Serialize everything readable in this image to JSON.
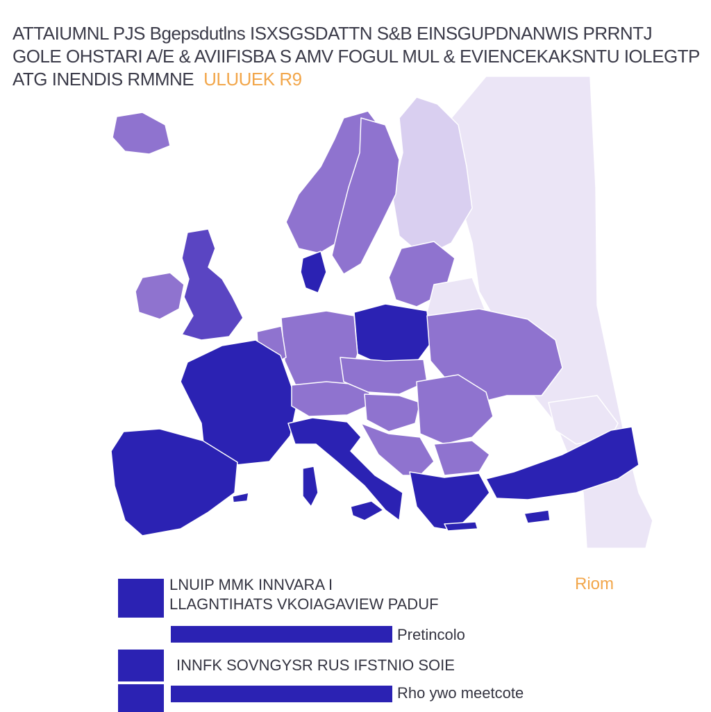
{
  "title": {
    "line1": "ATTAIUMNL PJS Bgepsdutlns ISXSGSDATTN S&B EINSGUPDNANWIS PRRNTJ",
    "line2": "GOLE OHSTARI A/E & AVIIFISBA S AMV FOGUL MUL & EVIENCEKAKSNTU IOLEGTPFOUIRI",
    "line3": "ATG INENDIS RMMNE",
    "line3_accent": "ULUUEK R9"
  },
  "colors": {
    "dark": "#2b22b3",
    "mid_dark": "#5a45c2",
    "mid": "#8f73cf",
    "light": "#b9a6e0",
    "pale": "#d9cff0",
    "very_pale": "#ebe5f6",
    "accent": "#f2a64a"
  },
  "map": {
    "regions": [
      {
        "name": "iceland",
        "shade": "mid"
      },
      {
        "name": "ireland",
        "shade": "mid"
      },
      {
        "name": "united-kingdom",
        "shade": "mid_dark"
      },
      {
        "name": "norway",
        "shade": "mid"
      },
      {
        "name": "sweden",
        "shade": "mid"
      },
      {
        "name": "finland",
        "shade": "pale"
      },
      {
        "name": "russia-west",
        "shade": "very_pale"
      },
      {
        "name": "denmark",
        "shade": "dark"
      },
      {
        "name": "baltics",
        "shade": "mid"
      },
      {
        "name": "belarus",
        "shade": "very_pale"
      },
      {
        "name": "poland",
        "shade": "dark"
      },
      {
        "name": "germany",
        "shade": "mid"
      },
      {
        "name": "benelux",
        "shade": "mid"
      },
      {
        "name": "france",
        "shade": "dark"
      },
      {
        "name": "spain-portugal",
        "shade": "dark"
      },
      {
        "name": "switzerland-austria",
        "shade": "mid"
      },
      {
        "name": "czechia-slovakia",
        "shade": "mid"
      },
      {
        "name": "hungary",
        "shade": "mid"
      },
      {
        "name": "ukraine",
        "shade": "mid"
      },
      {
        "name": "romania",
        "shade": "mid"
      },
      {
        "name": "italy",
        "shade": "dark"
      },
      {
        "name": "balkans",
        "shade": "mid"
      },
      {
        "name": "bulgaria",
        "shade": "mid"
      },
      {
        "name": "greece",
        "shade": "dark"
      },
      {
        "name": "turkey",
        "shade": "dark"
      },
      {
        "name": "caucasus",
        "shade": "very_pale"
      },
      {
        "name": "sardinia-corsica",
        "shade": "dark"
      },
      {
        "name": "sicily",
        "shade": "dark"
      },
      {
        "name": "balearic",
        "shade": "dark"
      },
      {
        "name": "crete",
        "shade": "dark"
      },
      {
        "name": "cyprus",
        "shade": "dark"
      }
    ]
  },
  "legend": {
    "items": [
      {
        "label": "LNUIP MMK INNVARA I",
        "bar": 0.0
      },
      {
        "label": "LLAGNTIHATS VKOIAGAVIEW PADUF",
        "bar": 0.0
      },
      {
        "label": "Pretincolo",
        "bar": 0.76
      },
      {
        "label": "INNFK SOVNGYSR RUS IFSTNIO SOIE",
        "bar": 0.0
      },
      {
        "label": "Rho ywo meetcote",
        "bar": 0.76
      }
    ],
    "accent_label": "Riom"
  }
}
